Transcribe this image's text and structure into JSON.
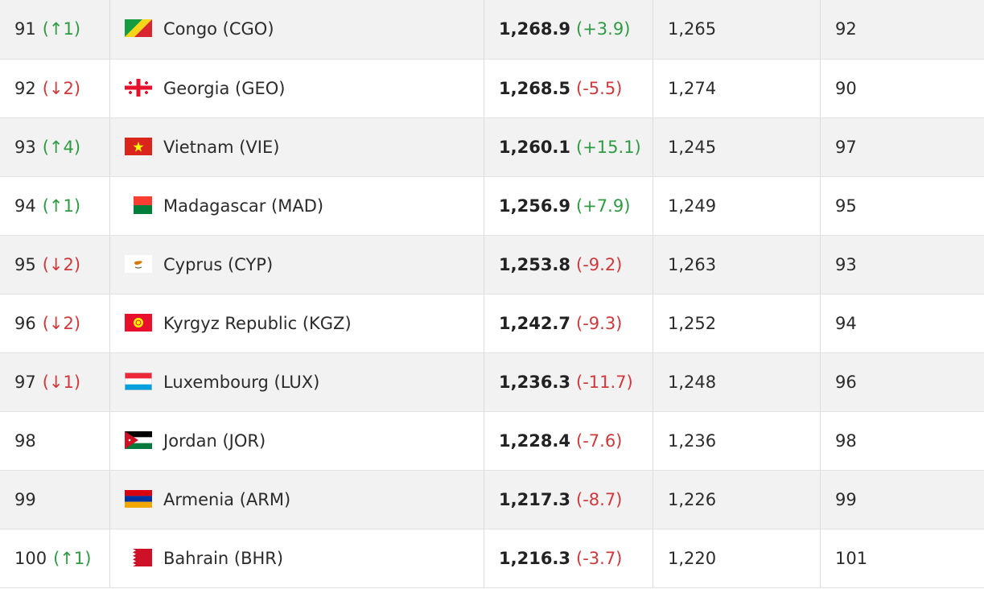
{
  "rows": [
    {
      "rank": "91",
      "move": "(↑1)",
      "dir": "up",
      "team": "Congo (CGO)",
      "flag": "congo-flag-icon",
      "points": "1,268.9",
      "change": "(+3.9)",
      "change_dir": "up",
      "prev_points": "1,265",
      "prev_rank": "92"
    },
    {
      "rank": "92",
      "move": "(↓2)",
      "dir": "down",
      "team": "Georgia (GEO)",
      "flag": "georgia-flag-icon",
      "points": "1,268.5",
      "change": "(-5.5)",
      "change_dir": "down",
      "prev_points": "1,274",
      "prev_rank": "90"
    },
    {
      "rank": "93",
      "move": "(↑4)",
      "dir": "up",
      "team": "Vietnam (VIE)",
      "flag": "vietnam-flag-icon",
      "points": "1,260.1",
      "change": "(+15.1)",
      "change_dir": "up",
      "prev_points": "1,245",
      "prev_rank": "97"
    },
    {
      "rank": "94",
      "move": "(↑1)",
      "dir": "up",
      "team": "Madagascar (MAD)",
      "flag": "madagascar-flag-icon",
      "points": "1,256.9",
      "change": "(+7.9)",
      "change_dir": "up",
      "prev_points": "1,249",
      "prev_rank": "95"
    },
    {
      "rank": "95",
      "move": "(↓2)",
      "dir": "down",
      "team": "Cyprus (CYP)",
      "flag": "cyprus-flag-icon",
      "points": "1,253.8",
      "change": "(-9.2)",
      "change_dir": "down",
      "prev_points": "1,263",
      "prev_rank": "93"
    },
    {
      "rank": "96",
      "move": "(↓2)",
      "dir": "down",
      "team": "Kyrgyz Republic (KGZ)",
      "flag": "kyrgyzstan-flag-icon",
      "points": "1,242.7",
      "change": "(-9.3)",
      "change_dir": "down",
      "prev_points": "1,252",
      "prev_rank": "94"
    },
    {
      "rank": "97",
      "move": "(↓1)",
      "dir": "down",
      "team": "Luxembourg (LUX)",
      "flag": "luxembourg-flag-icon",
      "points": "1,236.3",
      "change": "(-11.7)",
      "change_dir": "down",
      "prev_points": "1,248",
      "prev_rank": "96"
    },
    {
      "rank": "98",
      "move": "",
      "dir": "none",
      "team": "Jordan (JOR)",
      "flag": "jordan-flag-icon",
      "points": "1,228.4",
      "change": "(-7.6)",
      "change_dir": "down",
      "prev_points": "1,236",
      "prev_rank": "98"
    },
    {
      "rank": "99",
      "move": "",
      "dir": "none",
      "team": "Armenia (ARM)",
      "flag": "armenia-flag-icon",
      "points": "1,217.3",
      "change": "(-8.7)",
      "change_dir": "down",
      "prev_points": "1,226",
      "prev_rank": "99"
    },
    {
      "rank": "100",
      "move": "(↑1)",
      "dir": "up",
      "team": "Bahrain (BHR)",
      "flag": "bahrain-flag-icon",
      "points": "1,216.3",
      "change": "(-3.7)",
      "change_dir": "down",
      "prev_points": "1,220",
      "prev_rank": "101"
    }
  ],
  "colors": {
    "up": "#2e9b43",
    "down": "#d0393b",
    "row_alt": "#f2f2f2"
  }
}
